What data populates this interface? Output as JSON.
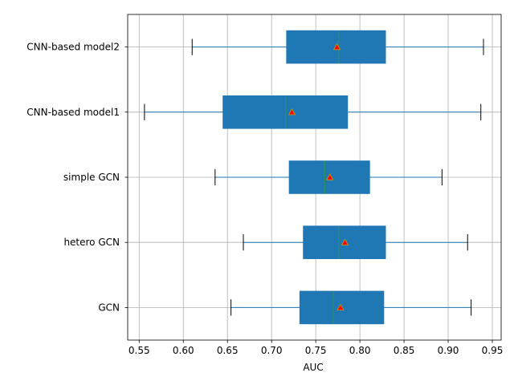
{
  "chart_data": {
    "type": "boxplot",
    "orientation": "horizontal",
    "title": "",
    "xlabel": "AUC",
    "ylabel": "",
    "xlim": [
      0.537,
      0.96
    ],
    "xticks": [
      0.55,
      0.6,
      0.65,
      0.7,
      0.75,
      0.8,
      0.85,
      0.9,
      0.95
    ],
    "xtick_labels": [
      "0.55",
      "0.60",
      "0.65",
      "0.70",
      "0.75",
      "0.80",
      "0.85",
      "0.90",
      "0.95"
    ],
    "grid": true,
    "legend": "none",
    "box_color": "#1f77b4",
    "median_color": "#2ca02c",
    "mean_marker_color": "#ff0000",
    "mean_marker_face": "#c8a000",
    "categories": [
      "GCN",
      "hetero GCN",
      "simple GCN",
      "CNN-based model1",
      "CNN-based model2"
    ],
    "boxes": [
      {
        "label": "GCN",
        "whislo": 0.654,
        "q1": 0.732,
        "med": 0.77,
        "q3": 0.827,
        "whishi": 0.926,
        "mean": 0.778
      },
      {
        "label": "hetero GCN",
        "whislo": 0.668,
        "q1": 0.736,
        "med": 0.776,
        "q3": 0.829,
        "whishi": 0.922,
        "mean": 0.783
      },
      {
        "label": "simple GCN",
        "whislo": 0.636,
        "q1": 0.72,
        "med": 0.76,
        "q3": 0.811,
        "whishi": 0.893,
        "mean": 0.766
      },
      {
        "label": "CNN-based model1",
        "whislo": 0.556,
        "q1": 0.645,
        "med": 0.716,
        "q3": 0.786,
        "whishi": 0.937,
        "mean": 0.723
      },
      {
        "label": "CNN-based model2",
        "whislo": 0.61,
        "q1": 0.717,
        "med": 0.776,
        "q3": 0.829,
        "whishi": 0.94,
        "mean": 0.774
      }
    ]
  }
}
